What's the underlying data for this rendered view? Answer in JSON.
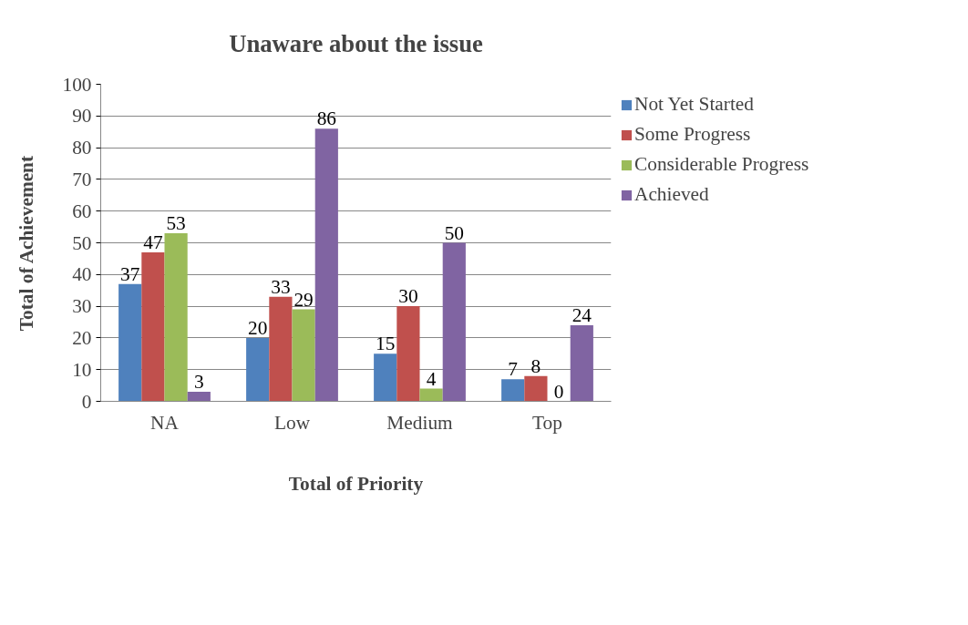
{
  "chart_data": {
    "type": "bar",
    "title": "Unaware about the issue",
    "xlabel": "Total of Priority",
    "ylabel": "Total of Achievement",
    "categories": [
      "NA",
      "Low",
      "Medium",
      "Top"
    ],
    "series": [
      {
        "name": "Not Yet Started",
        "color": "#4f81bd",
        "values": [
          37,
          20,
          15,
          7
        ]
      },
      {
        "name": "Some Progress",
        "color": "#c0504d",
        "values": [
          47,
          33,
          30,
          8
        ]
      },
      {
        "name": "Considerable Progress",
        "color": "#9bbb59",
        "values": [
          53,
          29,
          4,
          0
        ]
      },
      {
        "name": "Achieved",
        "color": "#8064a2",
        "values": [
          3,
          86,
          50,
          24
        ]
      }
    ],
    "ylim": [
      0,
      100
    ],
    "yticks": [
      0,
      10,
      20,
      30,
      40,
      50,
      60,
      70,
      80,
      90,
      100
    ],
    "grid": "y",
    "legend": "right",
    "data_labels": true
  }
}
